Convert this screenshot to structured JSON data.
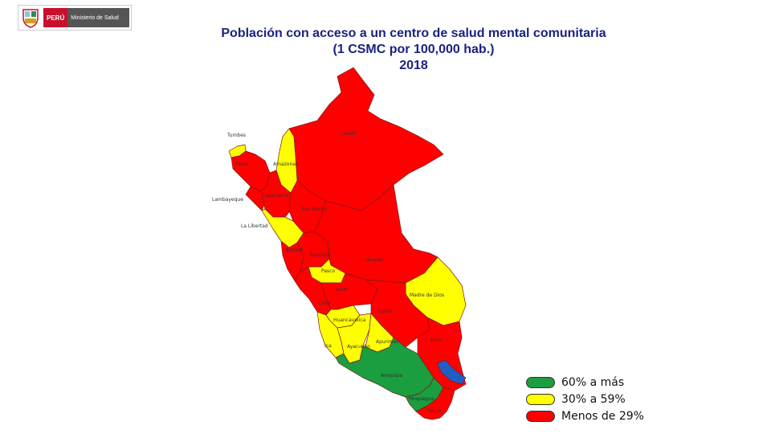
{
  "header": {
    "country": "PERÚ",
    "ministry": "Ministerio de Salud"
  },
  "title": {
    "line1": "Población con acceso a un centro de salud mental comunitaria",
    "line2": "(1 CSMC por 100,000 hab.)",
    "line3": "2018"
  },
  "colors": {
    "green": "#1a9e3f",
    "yellow": "#ffff00",
    "red": "#ff0000",
    "blue": "#1f5fc4"
  },
  "legend": [
    {
      "label": "60% a más",
      "color": "#1a9e3f"
    },
    {
      "label": "30% a 59%",
      "color": "#ffff00"
    },
    {
      "label": "Menos de 29%",
      "color": "#ff0000"
    }
  ],
  "regions": {
    "tumbes": "Tumbes",
    "loreto": "Loreto",
    "piura": "Piura",
    "amazonas": "Amazonas",
    "cajamarca": "Cajamarca",
    "lambayeque": "Lambayeque",
    "san_martin": "San Martin",
    "la_libertad": "La Libertad",
    "ancash": "Ancash",
    "huanuco": "Huánuco",
    "ucayali": "Ucayali",
    "pasco": "Pasco",
    "junin": "Junin",
    "madre_de_dios": "Madre de Dios",
    "lima": "Lima",
    "cusco": "Cusco",
    "huancavelica": "Huancavelica",
    "apurimac": "Apurimac",
    "puno": "Puno",
    "ica": "Ica",
    "ayacucho": "Ayacucho",
    "arequipa": "Arequipa",
    "moquegua": "Moquegua",
    "tacna": "Tacna"
  }
}
